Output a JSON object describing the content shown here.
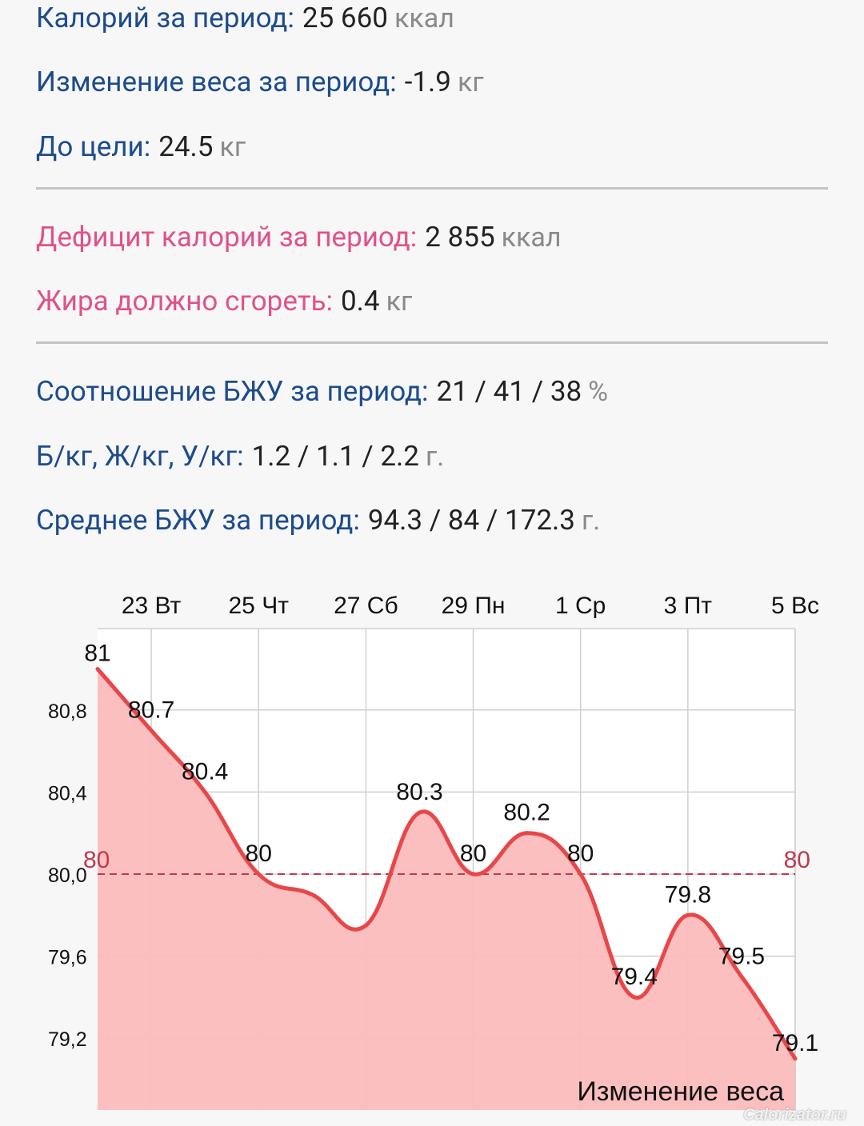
{
  "stats": {
    "calories": {
      "label": "Калорий за период:",
      "value": "25 660",
      "unit": "ккал"
    },
    "weight_change": {
      "label": "Изменение веса за период:",
      "value": "-1.9",
      "unit": "кг"
    },
    "to_goal": {
      "label": "До цели:",
      "value": "24.5",
      "unit": "кг"
    },
    "deficit": {
      "label": "Дефицит калорий за период:",
      "value": "2 855",
      "unit": "ккал"
    },
    "fat_burn": {
      "label": "Жира должно сгореть:",
      "value": "0.4",
      "unit": "кг"
    },
    "bju_ratio": {
      "label": "Соотношение БЖУ за период:",
      "value": "21 / 41 / 38",
      "unit": "%"
    },
    "bju_per_kg": {
      "label": "Б/кг, Ж/кг, У/кг:",
      "value": "1.2 / 1.1 / 2.2",
      "unit": "г."
    },
    "bju_avg": {
      "label": "Среднее БЖУ за период:",
      "value": "94.3 / 84 / 172.3",
      "unit": "г."
    }
  },
  "colors": {
    "label_blue": "#1d4c8c",
    "label_pink": "#e0528a",
    "line": "#e8474a",
    "fill": "#fbbcbc",
    "goal": "#c0394d"
  },
  "watermark": "Calorizator.ru",
  "chart_data": {
    "type": "area",
    "title": "Изменение веса",
    "x_ticks": [
      {
        "day": 1,
        "label": "23 Вт"
      },
      {
        "day": 3,
        "label": "25 Чт"
      },
      {
        "day": 5,
        "label": "27 Сб"
      },
      {
        "day": 7,
        "label": "29 Пн"
      },
      {
        "day": 9,
        "label": "1 Ср"
      },
      {
        "day": 11,
        "label": "3 Пт"
      },
      {
        "day": 13,
        "label": "5 Вс"
      }
    ],
    "series": [
      {
        "x": [
          0,
          1,
          2,
          3,
          4,
          5,
          6,
          7,
          8,
          9,
          10,
          11,
          12,
          13
        ],
        "values": [
          81,
          80.7,
          80.4,
          80,
          79.9,
          79.75,
          80.3,
          80,
          80.2,
          80,
          79.4,
          79.8,
          79.5,
          79.1
        ],
        "labels": [
          "81",
          "80.7",
          "80.4",
          "80",
          "",
          "",
          "80.3",
          "80",
          "80.2",
          "80",
          "79.4",
          "79.8",
          "79.5",
          "79.1"
        ]
      }
    ],
    "y_ticks": [
      "80,8",
      "80,4",
      "80,0",
      "79,6",
      "79,2"
    ],
    "y_tick_values": [
      80.8,
      80.4,
      80.0,
      79.6,
      79.2
    ],
    "goal": {
      "value": 80,
      "label": "80"
    },
    "grid": true
  }
}
